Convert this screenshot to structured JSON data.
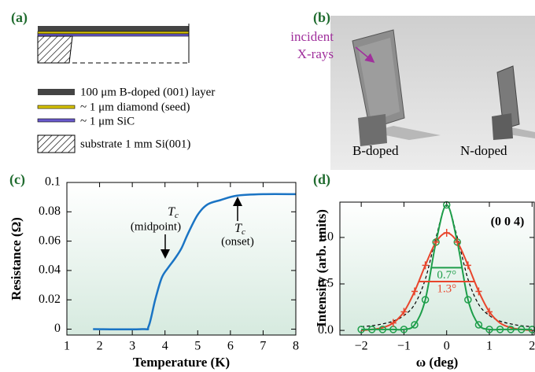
{
  "panels": {
    "a": "(a)",
    "b": "(b)"
  },
  "diagram": {
    "legend": [
      "100 μm B-doped (001) layer",
      "~ 1 μm diamond (seed)",
      "~ 1 μm SiC",
      "substrate 1 mm Si(001)"
    ]
  },
  "photo": {
    "incident": [
      "incident",
      "X-rays"
    ],
    "samples": [
      "B-doped",
      "N-doped"
    ]
  },
  "chart_data": [
    {
      "panel_label": "(c)",
      "type": "line",
      "x_label": "Temperature (K)",
      "y_label": "Resistance (Ω)",
      "xlim": [
        1,
        8
      ],
      "ylim": [
        -0.004,
        0.1
      ],
      "xticks": [
        1,
        2,
        3,
        4,
        5,
        6,
        7,
        8
      ],
      "yticks": [
        0,
        0.02,
        0.04,
        0.06,
        0.08,
        0.1
      ],
      "x": [
        1.8,
        3.3,
        3.5,
        3.7,
        3.9,
        4.1,
        4.3,
        4.5,
        4.7,
        5.0,
        5.3,
        5.7,
        6.2,
        7.0,
        8.0
      ],
      "series": [
        {
          "color": "#1a74c4",
          "values": [
            0,
            0,
            0.002,
            0.02,
            0.035,
            0.042,
            0.048,
            0.055,
            0.065,
            0.078,
            0.085,
            0.088,
            0.091,
            0.092,
            0.092
          ]
        }
      ],
      "annotations": [
        {
          "symbol": "T",
          "subscript": "c",
          "label": "(midpoint)"
        },
        {
          "symbol": "T",
          "subscript": "c",
          "label": "(onset)"
        }
      ]
    },
    {
      "panel_label": "(d)",
      "type": "scatter",
      "x_label": "ω (deg)",
      "y_label": "Intensity (arb. units)",
      "xlim": [
        -2.5,
        2.05
      ],
      "ylim": [
        -0.05,
        1.38
      ],
      "xticks": [
        {
          "value": -2,
          "label": "−2"
        },
        {
          "value": -1,
          "label": "−1"
        },
        0,
        1,
        2
      ],
      "yticks": [
        {
          "value": 0,
          "label": "0.0"
        },
        0.5,
        {
          "value": 1,
          "label": "1.0"
        }
      ],
      "annotation": "(0 0 4)",
      "series": [
        {
          "marker": "circle",
          "color": "#1e9e4a",
          "x": [
            -2,
            -1.75,
            -1.5,
            -1.25,
            -1,
            -0.75,
            -0.5,
            -0.25,
            0,
            0.25,
            0.5,
            0.75,
            1,
            1.25,
            1.5,
            1.75,
            2
          ],
          "values": [
            0.01,
            0.01,
            0.01,
            0.01,
            0.01,
            0.06,
            0.33,
            0.95,
            1.35,
            0.95,
            0.33,
            0.06,
            0.01,
            0.01,
            0.01,
            0.01,
            0.01
          ]
        },
        {
          "marker": "plus",
          "color": "#e8452c",
          "x": [
            -1.25,
            -1,
            -0.75,
            -0.5,
            -0.25,
            0,
            0.25,
            0.5,
            0.75,
            1
          ],
          "values": [
            0.08,
            0.2,
            0.42,
            0.7,
            0.95,
            1.05,
            0.95,
            0.7,
            0.42,
            0.2
          ]
        }
      ],
      "fits": [
        {
          "color": "#000000",
          "dash": true,
          "x": [
            -2,
            -1.75,
            -1.5,
            -1.25,
            -1,
            -0.75,
            -0.5,
            -0.25,
            0,
            0.25,
            0.5,
            0.75,
            1,
            1.25,
            1.5,
            1.75,
            2
          ],
          "values": [
            0.04,
            0.05,
            0.07,
            0.1,
            0.16,
            0.28,
            0.55,
            1.0,
            1.35,
            1.0,
            0.55,
            0.28,
            0.16,
            0.1,
            0.07,
            0.05,
            0.04
          ]
        },
        {
          "color": "#e8452c",
          "dash": false,
          "x": [
            -2,
            -1.75,
            -1.5,
            -1.25,
            -1,
            -0.75,
            -0.5,
            -0.25,
            0,
            0.25,
            0.5,
            0.75,
            1,
            1.25,
            1.5,
            1.75,
            2
          ],
          "values": [
            0.0,
            0.01,
            0.03,
            0.08,
            0.2,
            0.42,
            0.7,
            0.95,
            1.05,
            0.95,
            0.7,
            0.42,
            0.2,
            0.08,
            0.03,
            0.01,
            0.0
          ]
        },
        {
          "color": "#1e9e4a",
          "dash": false,
          "x": [
            -2,
            -1.75,
            -1.5,
            -1.25,
            -1,
            -0.75,
            -0.5,
            -0.25,
            0,
            0.25,
            0.5,
            0.75,
            1,
            1.25,
            1.5,
            1.75,
            2
          ],
          "values": [
            0.01,
            0.01,
            0.01,
            0.01,
            0.01,
            0.06,
            0.33,
            0.95,
            1.35,
            0.95,
            0.33,
            0.06,
            0.01,
            0.01,
            0.01,
            0.01,
            0.01
          ]
        }
      ],
      "fwhm": [
        {
          "label": "0.7°",
          "color": "#1e9e4a",
          "y": 0.675,
          "x": [
            -0.35,
            0.35
          ]
        },
        {
          "label": "1.3°",
          "color": "#e8452c",
          "y": 0.525,
          "x": [
            -0.65,
            0.65
          ]
        }
      ]
    }
  ]
}
